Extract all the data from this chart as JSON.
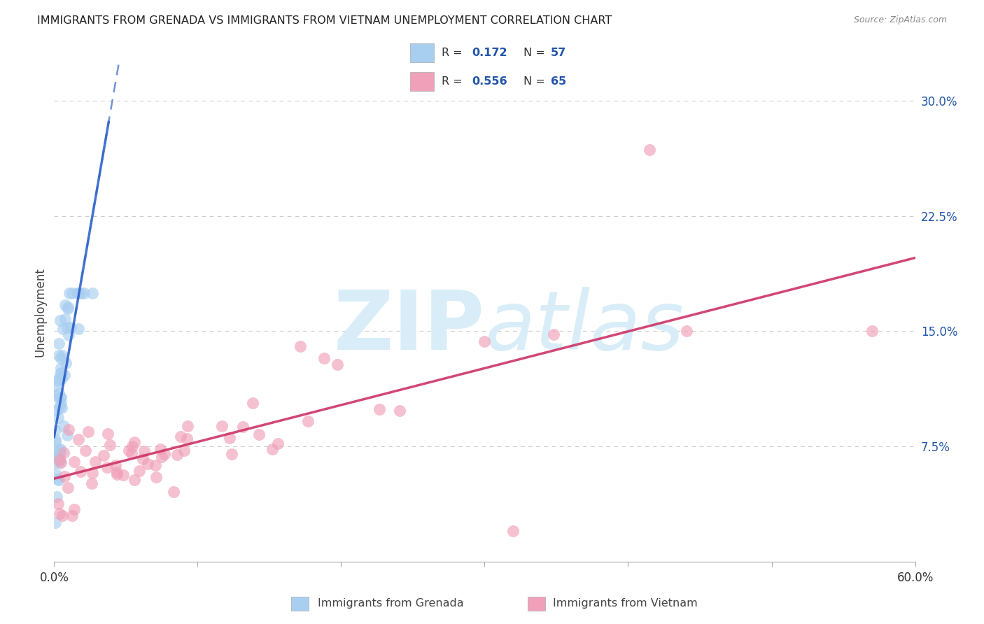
{
  "title": "IMMIGRANTS FROM GRENADA VS IMMIGRANTS FROM VIETNAM UNEMPLOYMENT CORRELATION CHART",
  "source": "Source: ZipAtlas.com",
  "ylabel": "Unemployment",
  "xlim": [
    0.0,
    0.6
  ],
  "ylim": [
    0.0,
    0.325
  ],
  "yticks_right": [
    0.075,
    0.15,
    0.225,
    0.3
  ],
  "yticklabels_right": [
    "7.5%",
    "15.0%",
    "22.5%",
    "30.0%"
  ],
  "grenada_R": 0.172,
  "grenada_N": 57,
  "vietnam_R": 0.556,
  "vietnam_N": 65,
  "grenada_scatter_color": "#a8cef0",
  "vietnam_scatter_color": "#f0a0b8",
  "grenada_line_color": "#3366cc",
  "vietnam_line_color": "#cc3366",
  "watermark_color": "#d8edf8",
  "grid_color": "#cccccc",
  "title_fontsize": 11.5,
  "source_fontsize": 9,
  "legend_color": "#2255aa"
}
